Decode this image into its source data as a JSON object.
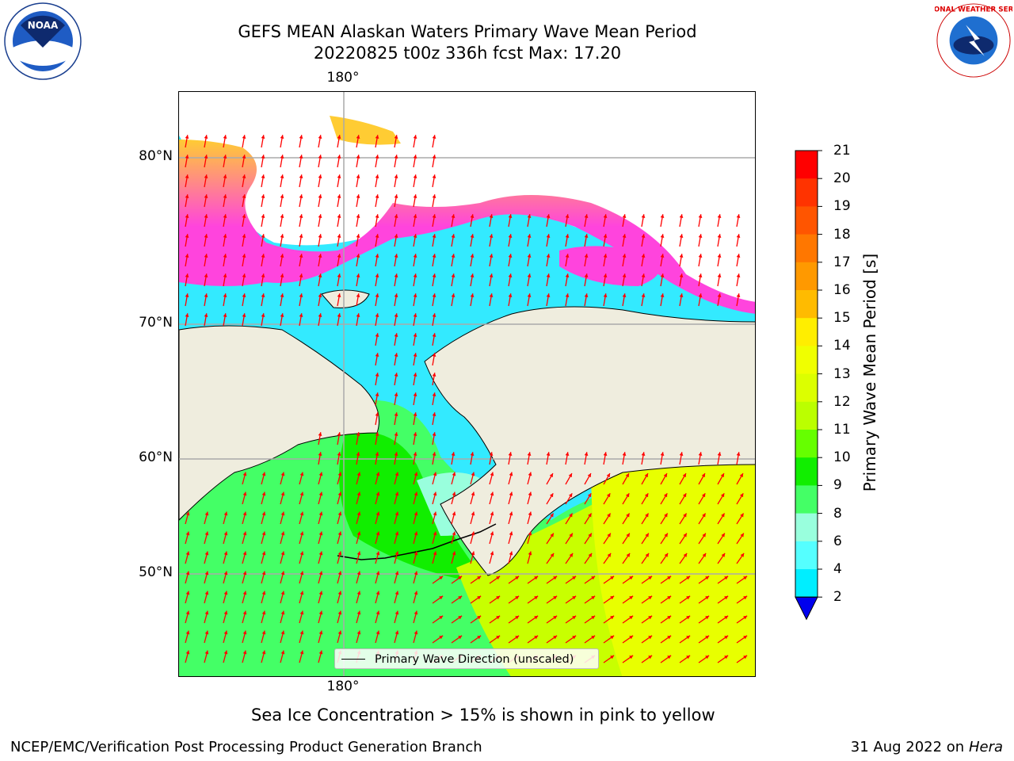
{
  "header": {
    "title_line1": "GEFS MEAN Alaskan Waters Primary Wave Mean Period",
    "title_line2": "20220825 t00z 336h fcst   Max: 17.20"
  },
  "map": {
    "lon_label_top": "180°",
    "lon_label_bottom": "180°",
    "lat_labels": [
      "80°N",
      "70°N",
      "60°N",
      "50°N"
    ],
    "legend": "Primary Wave Direction (unscaled)"
  },
  "colorbar": {
    "label": "Primary Wave Mean Period [s]",
    "ticks": [
      "21",
      "20",
      "19",
      "18",
      "17",
      "16",
      "15",
      "14",
      "13",
      "12",
      "11",
      "10",
      "9",
      "8",
      "6",
      "4",
      "2"
    ],
    "colors": [
      "#ff0000",
      "#ff3300",
      "#ff5500",
      "#ff7700",
      "#ff9900",
      "#ffbb00",
      "#ffee00",
      "#f0ff00",
      "#dcff00",
      "#bbff00",
      "#66ff00",
      "#11ee00",
      "#44ff66",
      "#99ffdd",
      "#55ffff",
      "#00eeff",
      "#0077ff"
    ],
    "extend_color": "#0000ee"
  },
  "logos": {
    "noaa_text": "NOAA",
    "nws_text": "NATIONAL WEATHER SERVICE"
  },
  "sea_ice_note": "Sea Ice Concentration > 15% is shown in pink to yellow",
  "footer": {
    "left": "NCEP/EMC/Verification Post Processing Product Generation Branch",
    "date": "31 Aug 2022 on",
    "machine": "Hera"
  },
  "palette": {
    "land": "#efedde",
    "arrow": "#ff0000",
    "ice_pink": "#ff44dd",
    "ice_yellow": "#ffcc33"
  }
}
